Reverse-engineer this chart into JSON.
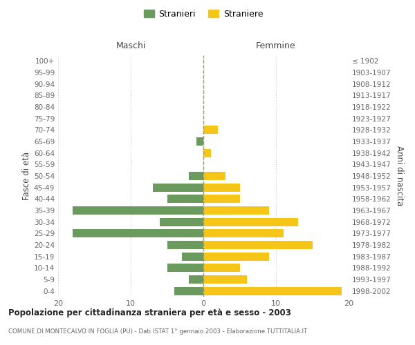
{
  "age_groups": [
    "0-4",
    "5-9",
    "10-14",
    "15-19",
    "20-24",
    "25-29",
    "30-34",
    "35-39",
    "40-44",
    "45-49",
    "50-54",
    "55-59",
    "60-64",
    "65-69",
    "70-74",
    "75-79",
    "80-84",
    "85-89",
    "90-94",
    "95-99",
    "100+"
  ],
  "birth_years": [
    "1998-2002",
    "1993-1997",
    "1988-1992",
    "1983-1987",
    "1978-1982",
    "1973-1977",
    "1968-1972",
    "1963-1967",
    "1958-1962",
    "1953-1957",
    "1948-1952",
    "1943-1947",
    "1938-1942",
    "1933-1937",
    "1928-1932",
    "1923-1927",
    "1918-1922",
    "1913-1917",
    "1908-1912",
    "1903-1907",
    "≤ 1902"
  ],
  "males": [
    4,
    2,
    5,
    3,
    5,
    18,
    6,
    18,
    5,
    7,
    2,
    0,
    0,
    1,
    0,
    0,
    0,
    0,
    0,
    0,
    0
  ],
  "females": [
    19,
    6,
    5,
    9,
    15,
    11,
    13,
    9,
    5,
    5,
    3,
    0,
    1,
    0,
    2,
    0,
    0,
    0,
    0,
    0,
    0
  ],
  "male_color": "#6b9a5e",
  "female_color": "#f5c518",
  "background_color": "#ffffff",
  "grid_color": "#cccccc",
  "title": "Popolazione per cittadinanza straniera per età e sesso - 2003",
  "subtitle": "COMUNE DI MONTECALVO IN FOGLIA (PU) - Dati ISTAT 1° gennaio 2003 - Elaborazione TUTTITALIA.IT",
  "ylabel_left": "Fasce di età",
  "ylabel_right": "Anni di nascita",
  "legend_male": "Stranieri",
  "legend_female": "Straniere",
  "header_left": "Maschi",
  "header_right": "Femmine",
  "xlim": 20
}
